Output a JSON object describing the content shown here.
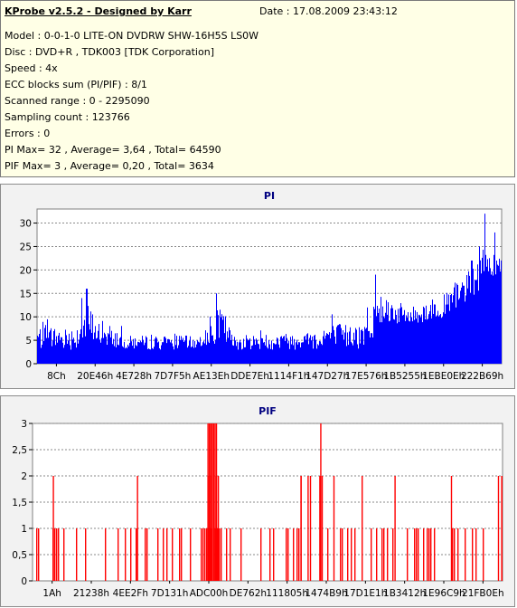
{
  "header": {
    "app_title": "KProbe v2.5.2 - Designed by Karr",
    "date": "Date : 17.08.2009 23:43:12",
    "rows": [
      "Model : 0-0-1-0 LITE-ON DVDRW SHW-16H5S  LS0W",
      "Disc : DVD+R , TDK003 [TDK Corporation]",
      "Speed : 4x",
      "ECC blocks sum (PI/PIF) : 8/1",
      "Scanned range : 0 - 2295090",
      "Sampling count : 123766",
      "Errors : 0",
      "PI Max= 32 , Average= 3,64 , Total= 64590",
      "PIF Max= 3 , Average= 0,20 , Total= 3634"
    ]
  },
  "colors": {
    "info_bg": "#ffffe6",
    "panel_bg": "#f2f2f2",
    "title_color": "#000080",
    "pi_color": "#0000ff",
    "pif_color": "#ff0000"
  },
  "chart_data": [
    {
      "type": "bar",
      "title": "PI",
      "xlabel": "",
      "ylabel": "",
      "ylim": [
        0,
        33
      ],
      "yticks": [
        0,
        5,
        10,
        15,
        20,
        25,
        30
      ],
      "grid": true,
      "x_tick_labels": [
        "8Ch",
        "20E46h",
        "4E728h",
        "7D7F5h",
        "AE13Eh",
        "DDE7Eh",
        "1114F1h",
        "147D27h",
        "17E576h",
        "1B5255h",
        "1EBE0Eh",
        "222B69h"
      ],
      "profile": [
        {
          "pos": 0.0,
          "lo": 3,
          "hi": 8
        },
        {
          "pos": 0.08,
          "lo": 3,
          "hi": 8
        },
        {
          "pos": 0.11,
          "lo": 4,
          "hi": 13
        },
        {
          "pos": 0.13,
          "lo": 4,
          "hi": 9
        },
        {
          "pos": 0.2,
          "lo": 3,
          "hi": 6
        },
        {
          "pos": 0.35,
          "lo": 3,
          "hi": 6
        },
        {
          "pos": 0.37,
          "lo": 4,
          "hi": 11
        },
        {
          "pos": 0.4,
          "lo": 4,
          "hi": 12
        },
        {
          "pos": 0.42,
          "lo": 3,
          "hi": 6
        },
        {
          "pos": 0.6,
          "lo": 3,
          "hi": 7
        },
        {
          "pos": 0.62,
          "lo": 3,
          "hi": 9
        },
        {
          "pos": 0.72,
          "lo": 3,
          "hi": 8
        },
        {
          "pos": 0.725,
          "lo": 9,
          "hi": 16
        },
        {
          "pos": 0.8,
          "lo": 8,
          "hi": 12
        },
        {
          "pos": 0.88,
          "lo": 10,
          "hi": 15
        },
        {
          "pos": 0.95,
          "lo": 15,
          "hi": 22
        },
        {
          "pos": 1.0,
          "lo": 20,
          "hi": 27
        }
      ],
      "peaks": [
        {
          "pos": 0.106,
          "value": 16
        },
        {
          "pos": 0.095,
          "value": 14
        },
        {
          "pos": 0.385,
          "value": 15
        },
        {
          "pos": 0.71,
          "value": 12
        },
        {
          "pos": 0.727,
          "value": 19
        },
        {
          "pos": 0.935,
          "value": 22
        },
        {
          "pos": 0.952,
          "value": 25
        },
        {
          "pos": 0.963,
          "value": 32
        },
        {
          "pos": 0.985,
          "value": 28
        }
      ]
    },
    {
      "type": "bar",
      "title": "PIF",
      "xlabel": "",
      "ylabel": "",
      "ylim": [
        0,
        3
      ],
      "yticks": [
        0,
        0.5,
        1,
        1.5,
        2,
        2.5,
        3
      ],
      "ytick_labels": [
        "0",
        "0,5",
        "1",
        "1,5",
        "2",
        "2,5",
        "3"
      ],
      "grid": true,
      "x_tick_labels": [
        "1Ah",
        "21238h",
        "4EE2Fh",
        "7D131h",
        "ADC00h",
        "DE762h",
        "111805h",
        "1474B9h",
        "17D1E1h",
        "1B3412h",
        "1E96C9h",
        "21FB0Eh"
      ],
      "ones_density": 0.28,
      "twos": [
        0.043,
        0.222,
        0.372,
        0.378,
        0.39,
        0.394,
        0.57,
        0.57,
        0.585,
        0.59,
        0.615,
        0.61,
        0.64,
        0.7,
        0.77,
        0.89,
        0.99,
        0.997,
        1.0
      ],
      "threes": [
        0.372,
        0.375,
        0.378,
        0.381,
        0.384,
        0.387,
        0.39,
        0.612
      ],
      "dense_ones": [
        [
          0.36,
          0.4
        ]
      ]
    }
  ]
}
